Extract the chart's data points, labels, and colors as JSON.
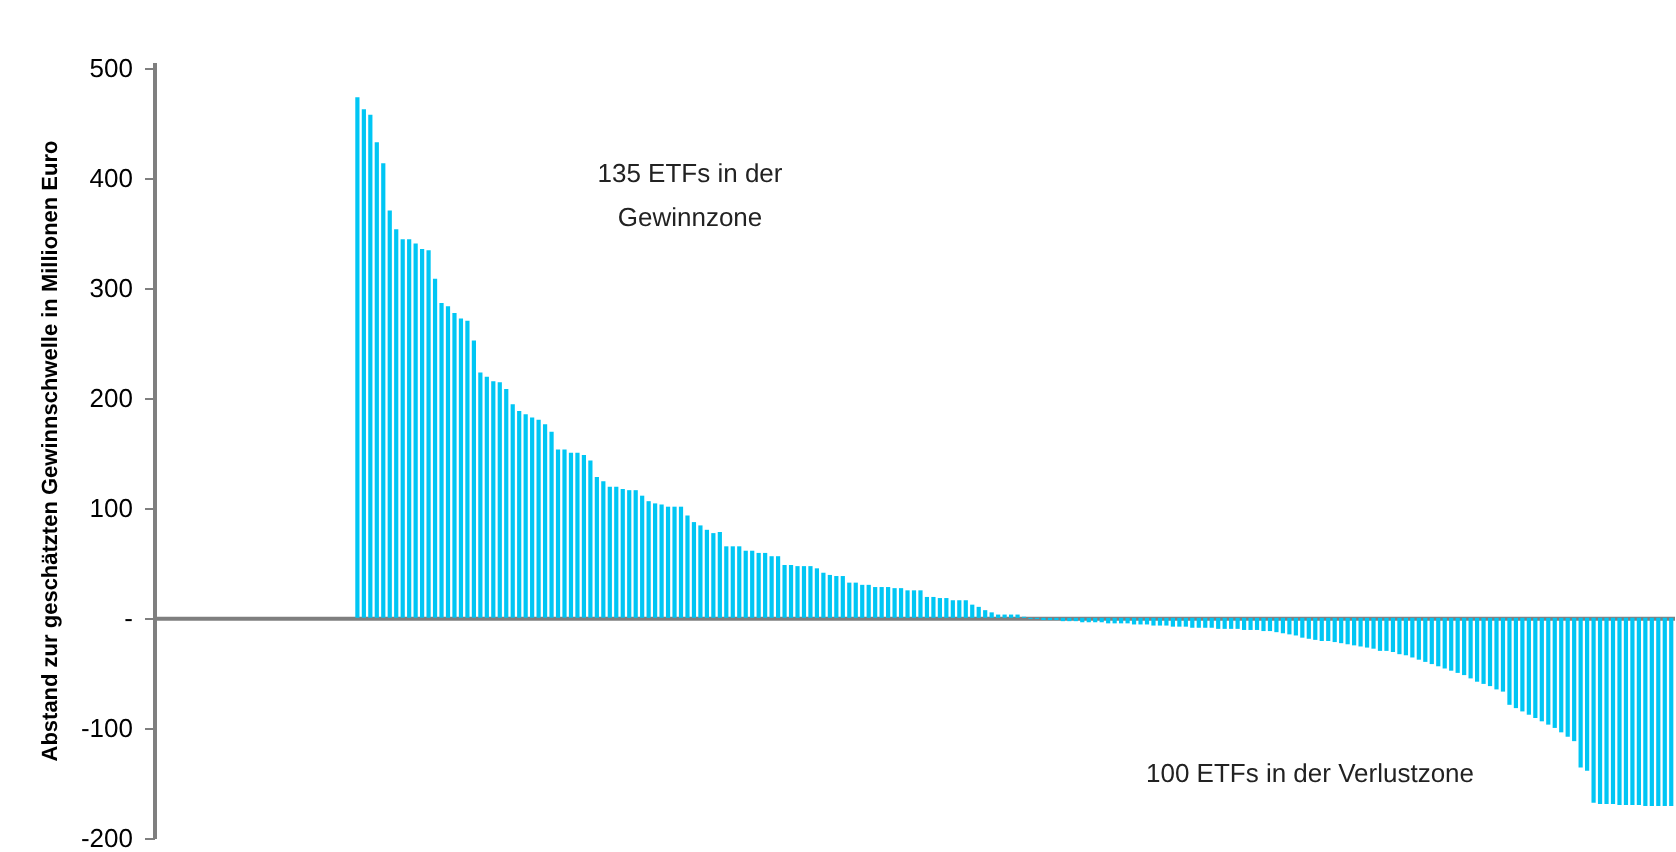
{
  "chart_data": {
    "type": "bar",
    "ylabel": "Abstand zur geschätzten Gewinnschwelle in Millionen Euro",
    "annotations": [
      "135 ETFs in der\nGewinnzone",
      "100 ETFs in der Verlustzone"
    ],
    "categories": [
      null,
      null,
      null,
      null,
      null,
      null,
      null,
      null,
      null,
      null,
      null,
      null,
      null,
      null,
      null,
      null,
      null,
      null,
      null,
      null,
      null,
      null,
      null,
      null,
      null,
      null,
      null,
      null,
      null,
      null,
      null,
      null,
      null,
      null,
      null,
      null,
      null,
      null,
      null,
      null,
      null,
      null,
      null,
      null,
      null,
      null,
      null,
      null,
      null,
      null,
      null,
      null,
      null,
      null,
      null,
      null,
      null,
      null,
      null,
      null,
      null,
      null,
      null,
      null,
      null,
      null,
      null,
      null,
      null,
      null,
      null,
      null,
      null,
      null,
      null,
      null,
      null,
      null,
      null,
      null,
      null,
      null,
      null,
      null,
      null,
      null,
      null,
      null,
      null,
      null,
      null,
      null,
      null,
      null,
      null,
      null,
      null,
      null,
      null,
      null,
      null,
      null,
      null,
      null,
      null,
      null,
      null,
      null,
      null,
      null,
      null,
      null,
      null,
      null,
      null,
      null,
      null,
      null,
      null,
      null,
      null,
      null,
      null,
      null,
      null,
      null,
      null,
      null,
      null,
      null,
      null,
      null,
      null,
      null,
      null,
      null,
      null,
      null,
      null,
      null,
      null,
      null,
      null,
      null,
      null,
      null,
      null,
      null,
      null,
      null,
      null,
      null,
      null,
      null,
      null,
      null,
      null,
      null,
      null,
      null,
      null,
      null,
      null,
      null,
      null,
      null,
      null,
      null,
      null,
      null,
      null,
      null,
      null,
      null,
      null,
      null,
      null,
      null,
      null,
      null,
      null,
      null,
      null,
      null,
      null,
      null,
      null,
      null,
      null,
      null,
      null,
      null,
      null,
      null,
      null,
      null,
      null,
      null,
      null,
      null,
      null,
      null,
      null,
      null,
      null,
      null,
      null,
      null,
      null,
      null,
      null,
      null,
      null,
      null,
      null,
      null,
      null,
      null,
      null,
      null,
      null,
      null,
      null,
      null,
      null,
      null,
      null,
      null,
      null,
      null,
      null,
      null,
      null,
      null,
      null
    ],
    "values": [
      null,
      null,
      null,
      null,
      null,
      null,
      null,
      null,
      null,
      null,
      null,
      null,
      null,
      null,
      null,
      null,
      null,
      null,
      null,
      null,
      null,
      null,
      null,
      null,
      null,
      null,
      null,
      null,
      null,
      null,
      null,
      473,
      462,
      457,
      432,
      413,
      370,
      353,
      344,
      344,
      340,
      335,
      334,
      308,
      286,
      283,
      277,
      272,
      270,
      252,
      223,
      219,
      215,
      214,
      208,
      194,
      188,
      185,
      182,
      180,
      176,
      169,
      153,
      153,
      150,
      150,
      148,
      143,
      128,
      124,
      119,
      119,
      117,
      116,
      116,
      111,
      106,
      104,
      103,
      101,
      101,
      101,
      93,
      87,
      84,
      80,
      77,
      78,
      65,
      65,
      65,
      61,
      61,
      59,
      59,
      56,
      56,
      48,
      48,
      47,
      47,
      47,
      45,
      41,
      39,
      38,
      38,
      32,
      32,
      30,
      30,
      28,
      28,
      28,
      27,
      27,
      25,
      25,
      25,
      19,
      19,
      18,
      18,
      16,
      16,
      16,
      12,
      10,
      7,
      5,
      3,
      3,
      3,
      3,
      1,
      -1,
      -1,
      -2,
      -2,
      -2,
      -3,
      -3,
      -3,
      -4,
      -4,
      -4,
      -4,
      -5,
      -5,
      -5,
      -5,
      -6,
      -6,
      -6,
      -7,
      -7,
      -7,
      -8,
      -8,
      -8,
      -9,
      -9,
      -9,
      -9,
      -10,
      -10,
      -10,
      -10,
      -11,
      -11,
      -11,
      -12,
      -12,
      -13,
      -14,
      -15,
      -16,
      -18,
      -19,
      -20,
      -21,
      -21,
      -22,
      -23,
      -24,
      -25,
      -26,
      -27,
      -28,
      -30,
      -30,
      -31,
      -33,
      -34,
      -36,
      -38,
      -40,
      -42,
      -44,
      -46,
      -48,
      -50,
      -52,
      -55,
      -58,
      -60,
      -62,
      -65,
      -67,
      -79,
      -82,
      -85,
      -88,
      -91,
      -94,
      -97,
      -100,
      -104,
      -108,
      -112,
      -136,
      -139,
      -168,
      -169,
      -169,
      -169,
      -170,
      -170,
      -170,
      -170,
      -171,
      -171,
      -171,
      -171,
      -171
    ],
    "color": "#00c6f4",
    "ylim": [
      -200,
      505
    ],
    "yticks": [
      -200,
      -100,
      {
        "value": 0,
        "label": "-"
      },
      100,
      200,
      300,
      400,
      500
    ]
  }
}
